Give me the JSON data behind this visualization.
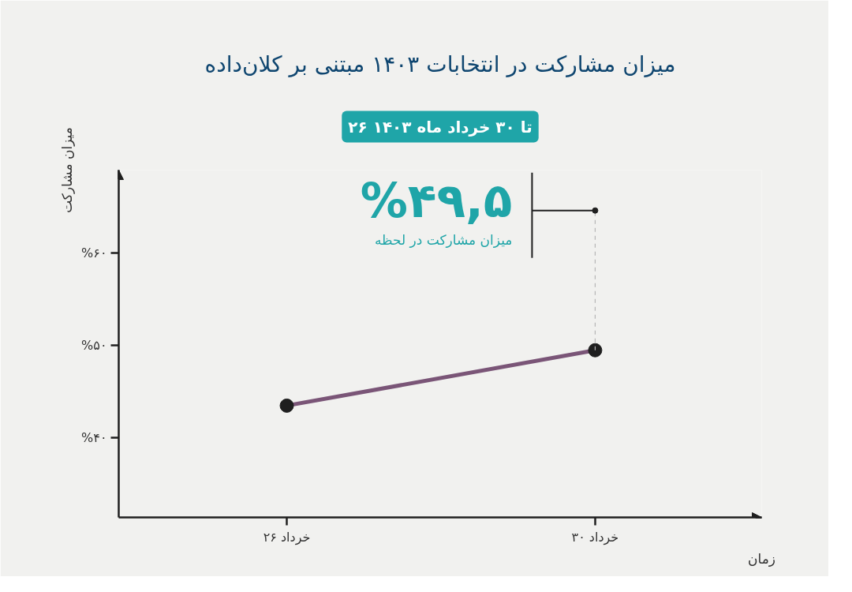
{
  "chart_data": {
    "type": "line",
    "title": "میزان مشارکت در انتخابات ۱۴۰۳ مبتنی بر کلان‌داده",
    "subtitle": "۲۶ تا ۳۰ خرداد ماه ۱۴۰۳",
    "xlabel": "زمان",
    "ylabel": "میزان مشارکت",
    "categories": [
      "۲۶ خرداد",
      "۳۰ خرداد"
    ],
    "series": [
      {
        "color": "#7a5577",
        "values": [
          43.5,
          49.5
        ]
      }
    ],
    "ylim": [
      31.4,
      69
    ],
    "yticks": [
      {
        "value": 40,
        "label": "%۴۰"
      },
      {
        "value": 50,
        "label": "%۵۰"
      },
      {
        "value": 60,
        "label": "%۶۰"
      }
    ],
    "marker": "circle",
    "annotations": [
      "%۴۹,۵",
      "میزان مشارکت در لحظه"
    ]
  }
}
